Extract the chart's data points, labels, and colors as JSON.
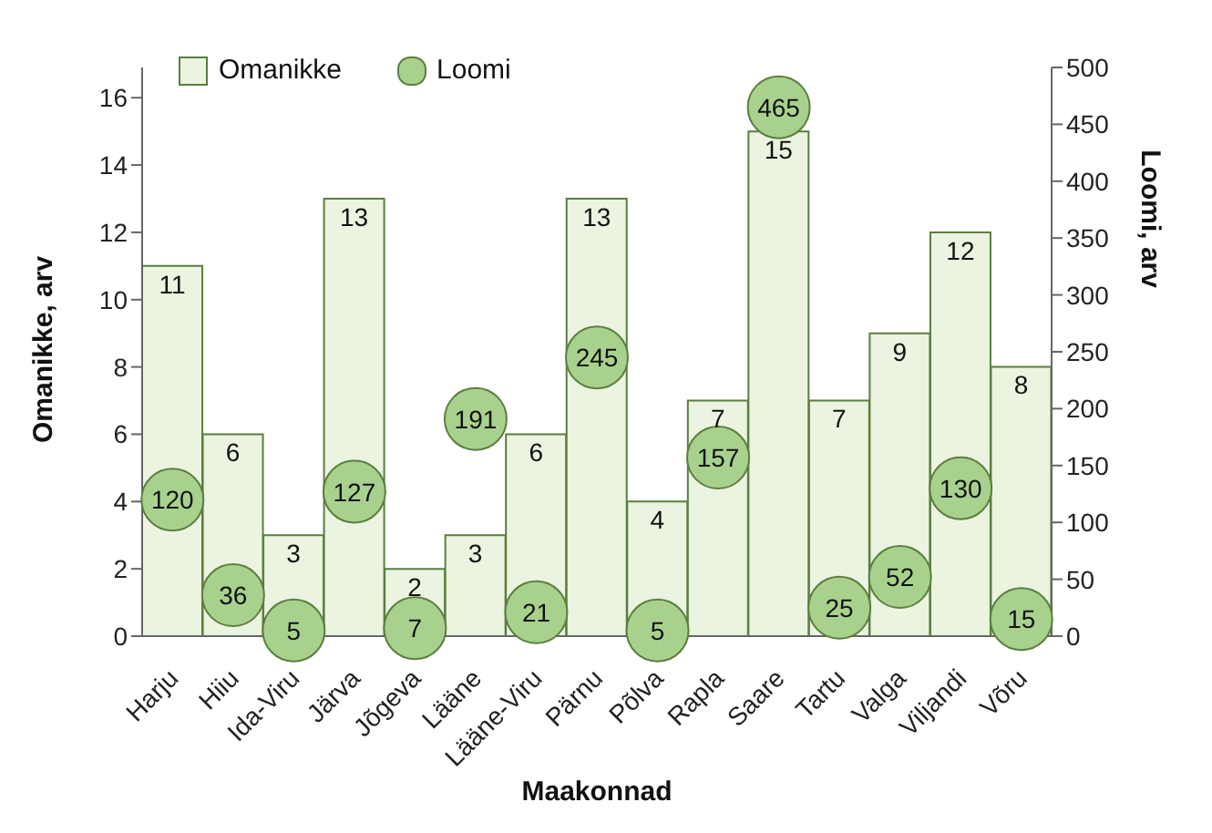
{
  "chart_data": {
    "type": "bar",
    "xlabel": "Maakonnad",
    "ylabel": "Omanikke, arv",
    "y2label": "Loomi, arv",
    "categories": [
      "Harju",
      "Hiiu",
      "Ida-Viru",
      "Järva",
      "Jõgeva",
      "Lääne",
      "Lääne-Viru",
      "Pärnu",
      "Põlva",
      "Rapla",
      "Saare",
      "Tartu",
      "Valga",
      "Viljandi",
      "Võru"
    ],
    "series": [
      {
        "name": "Omanikke",
        "color": "#ebf3e1",
        "values": [
          11,
          6,
          3,
          13,
          2,
          3,
          6,
          13,
          4,
          7,
          15,
          7,
          9,
          12,
          8
        ]
      },
      {
        "name": "Loomi",
        "type": "scatter",
        "axis": "y2",
        "color": "#a9d18e",
        "values": [
          120,
          36,
          5,
          127,
          7,
          191,
          21,
          245,
          5,
          157,
          465,
          25,
          52,
          130,
          15
        ]
      }
    ],
    "ylim": [
      0,
      16.9
    ],
    "yticks": [
      0,
      2,
      4,
      6,
      8,
      10,
      12,
      14,
      16
    ],
    "y2lim": [
      0,
      500
    ],
    "y2ticks": [
      0,
      50,
      100,
      150,
      200,
      250,
      300,
      350,
      400,
      450,
      500
    ],
    "data_labels": true,
    "legend": "top left",
    "grid": false,
    "marker": "circle"
  }
}
